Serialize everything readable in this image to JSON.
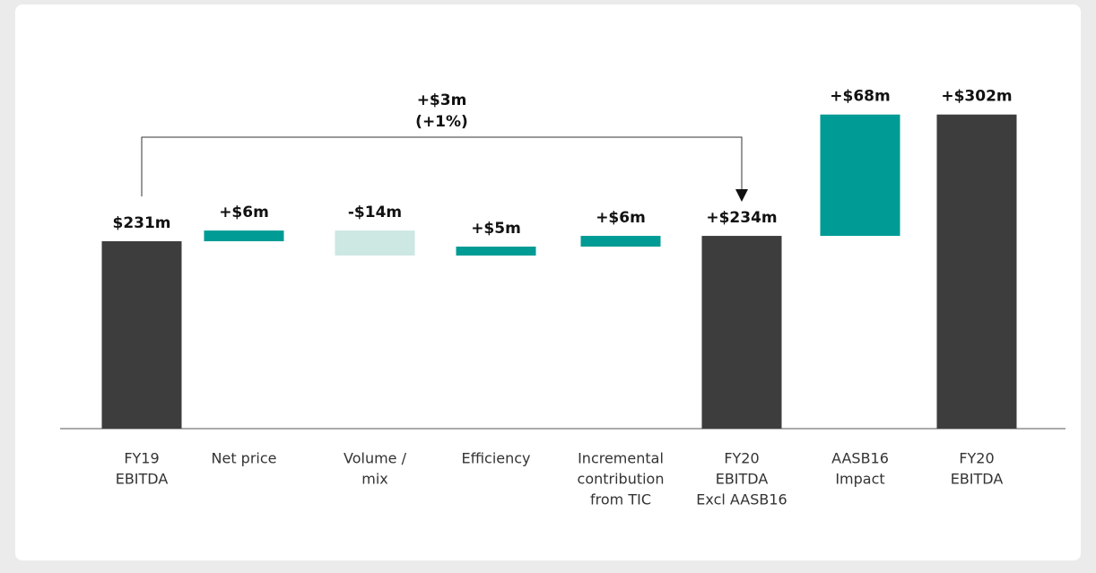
{
  "chart_data": {
    "type": "waterfall",
    "categories": [
      [
        "FY19",
        "EBITDA"
      ],
      [
        "Net price"
      ],
      [
        "Volume /",
        "mix"
      ],
      [
        "Efficiency"
      ],
      [
        "Incremental",
        "contribution",
        "from TIC"
      ],
      [
        "FY20",
        "EBITDA",
        "Excl AASB16"
      ],
      [
        "AASB16",
        "Impact"
      ],
      [
        "FY20",
        "EBITDA"
      ]
    ],
    "values": [
      231,
      6,
      -14,
      5,
      6,
      234,
      68,
      302
    ],
    "value_labels": [
      "$231m",
      "+$6m",
      "-$14m",
      "+$5m",
      "+$6m",
      "+$234m",
      "+$68m",
      "+$302m"
    ],
    "bar_kinds": [
      "total",
      "delta",
      "delta",
      "delta",
      "delta",
      "total",
      "delta",
      "total"
    ],
    "colors": {
      "total": "#3d3d3d",
      "increase": "#009b95",
      "decrease": "#cde7e3"
    },
    "ylim": [
      126,
      330
    ],
    "annotation": {
      "lines": [
        "+$3m",
        "(+1%)"
      ],
      "from": 0,
      "to": 5
    }
  }
}
